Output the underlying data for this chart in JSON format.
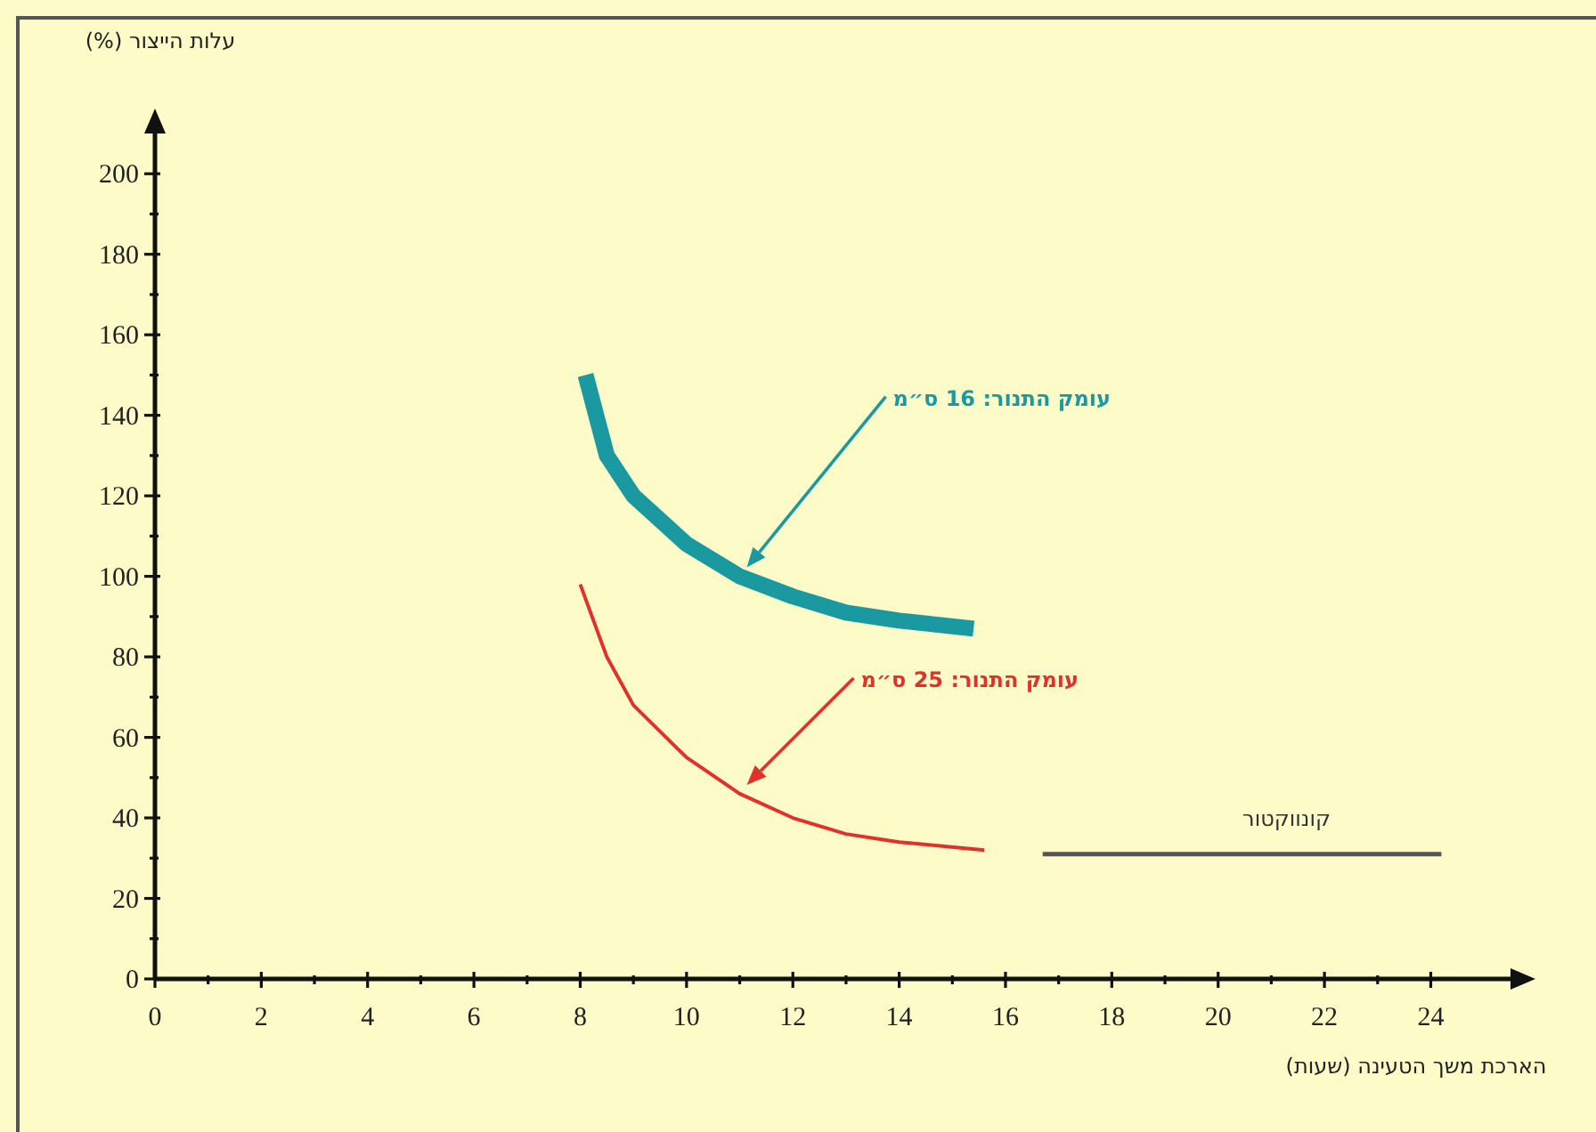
{
  "chart_data": {
    "type": "line",
    "xlabel": "הארכת משך הטעינה (שעות)",
    "ylabel": "עלות הייצור (%)",
    "xlim": [
      0,
      25.5
    ],
    "ylim": [
      0,
      210
    ],
    "xticks": [
      0,
      2,
      4,
      6,
      8,
      10,
      12,
      14,
      16,
      18,
      20,
      22,
      24
    ],
    "yticks": [
      0,
      20,
      40,
      60,
      80,
      100,
      120,
      140,
      160,
      180,
      200
    ],
    "series": [
      {
        "color": "#1a9aa0",
        "x": [
          8.1,
          8.5,
          9,
          10,
          11,
          12,
          13,
          14,
          15.4
        ],
        "values": [
          150,
          130,
          120,
          108,
          100,
          95,
          91,
          89,
          87
        ]
      },
      {
        "color": "#e0312b",
        "x": [
          8,
          8.5,
          9,
          10,
          11,
          12,
          13,
          14,
          15.6
        ],
        "values": [
          98,
          80,
          68,
          55,
          46,
          40,
          36,
          34,
          32
        ]
      },
      {
        "name": "קונווקטור",
        "color": "#555555",
        "x": [
          16.7,
          24.2
        ],
        "values": [
          31,
          31
        ]
      }
    ],
    "annotations": [
      "עומק התנור: 16 ס״מ",
      "עומק התנור: 25 ס״מ"
    ]
  }
}
